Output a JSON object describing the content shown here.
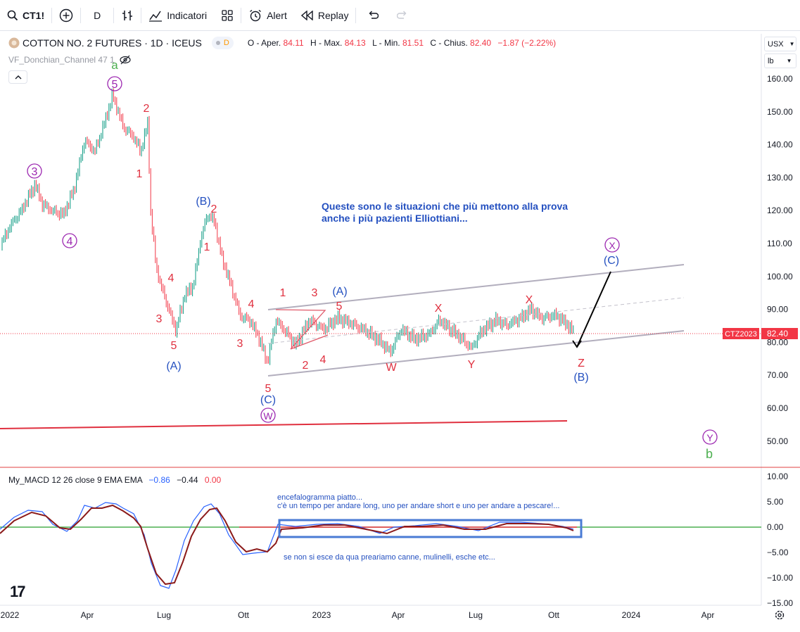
{
  "toolbar": {
    "symbol": "CT1!",
    "interval": "D",
    "indicators_label": "Indicatori",
    "alert_label": "Alert",
    "replay_label": "Replay"
  },
  "chart": {
    "title": "COTTON NO. 2 FUTURES · 1D · ICEUS",
    "exchange_badge": "D",
    "ohlc": {
      "open_label": "O - Aper.",
      "open": "84.11",
      "high_label": "H - Max.",
      "high": "84.13",
      "low_label": "L - Min.",
      "low": "81.51",
      "close_label": "C - Chius.",
      "close": "82.40",
      "change": "−1.87 (−2.22%)"
    },
    "indicator": "VF_Donchian_Channel 47 1",
    "currency": "USX",
    "unit": "lb",
    "price_axis": [
      "160.00",
      "150.00",
      "140.00",
      "130.00",
      "120.00",
      "110.00",
      "100.00",
      "90.00",
      "80.00",
      "70.00",
      "60.00",
      "50.00"
    ],
    "last_price_tag": "CTZ2023",
    "last_price": "82.40",
    "time_axis": [
      "2022",
      "Apr",
      "Lug",
      "Ott",
      "2023",
      "Apr",
      "Lug",
      "Ott",
      "2024",
      "Apr"
    ],
    "annotation": [
      "Queste sono le situazioni che più mettono alla prova",
      "anche i più pazienti Elliottiani..."
    ],
    "wave_labels": {
      "purple": [
        "5",
        "3",
        "4",
        "W",
        "X",
        "Y"
      ],
      "green": [
        "a",
        "b"
      ],
      "red": [
        "2",
        "1",
        "4",
        "3",
        "5",
        "2",
        "1",
        "4",
        "3",
        "5",
        "1",
        "3",
        "5",
        "2",
        "4",
        "X",
        "X",
        "Z"
      ],
      "blue": [
        "(B)",
        "(A)",
        "(C)",
        "(A)",
        "(C)",
        "(B)"
      ],
      "black_extra": [
        "W",
        "Y"
      ]
    }
  },
  "macd": {
    "legend": "My_MACD 12 26 close 9 EMA EMA",
    "v1": "−0.86",
    "v2": "−0.44",
    "v3": "0.00",
    "axis": [
      "10.00",
      "5.00",
      "0.00",
      "−5.00",
      "−10.00",
      "−15.00"
    ],
    "notes": [
      "encefalogramma piatto...",
      "c'è un tempo per andare long, uno per andare short e uno per andare a pescare!...",
      "se non si esce da qua preariamo canne, mulinelli, esche etc..."
    ]
  },
  "colors": {
    "up": "#089981",
    "down": "#f23645",
    "red_label": "#e0303f",
    "blue_label": "#2450c0",
    "purple": "#9c27b0",
    "green": "#4caf50"
  }
}
